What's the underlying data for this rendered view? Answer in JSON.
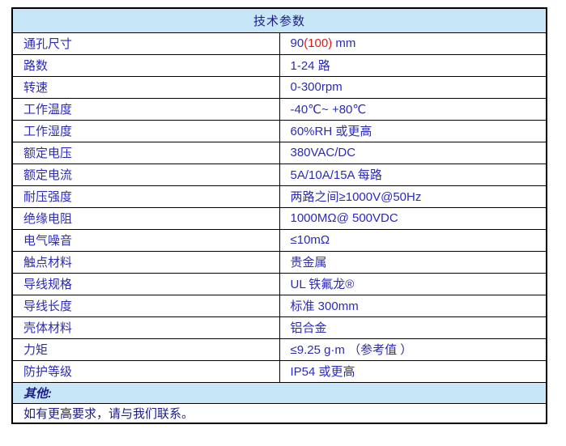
{
  "colors": {
    "header_bg": "#c7e6f8",
    "text_blue": "#2b2bb8",
    "navy": "#1d1d86",
    "highlight_red": "#e01818",
    "border": "#000000",
    "page_bg": "#ffffff"
  },
  "table": {
    "title": "技术参数",
    "rows": [
      {
        "label": "通孔尺寸",
        "parts": {
          "pre": "90",
          "red": "(100)",
          "post": " mm"
        }
      },
      {
        "label": "路数",
        "value": "1-24 路"
      },
      {
        "label": "转速",
        "value": "0-300rpm"
      },
      {
        "label": "工作温度",
        "value": "-40℃~ +80℃"
      },
      {
        "label": "工作湿度",
        "value": "60%RH 或更高"
      },
      {
        "label": "额定电压",
        "value": "380VAC/DC"
      },
      {
        "label": "额定电流",
        "value": "5A/10A/15A 每路"
      },
      {
        "label": "耐压强度",
        "value": "两路之间≥1000V@50Hz"
      },
      {
        "label": "绝缘电阻",
        "value": "1000MΩ@ 500VDC"
      },
      {
        "label": "电气噪音",
        "value": "≤10mΩ"
      },
      {
        "label": "触点材料",
        "value": "贵金属"
      },
      {
        "label": "导线规格",
        "value": "UL 铁氟龙®"
      },
      {
        "label": "导线长度",
        "value": "标准 300mm"
      },
      {
        "label": "壳体材料",
        "value": "铝合金"
      },
      {
        "label": "力矩",
        "value": "≤9.25 g·m （参考值 ）"
      },
      {
        "label": "防护等级",
        "value": "IP54 或更高"
      }
    ],
    "other_label": "其他:",
    "footer_note": "如有更高要求，请与我们联系。"
  }
}
